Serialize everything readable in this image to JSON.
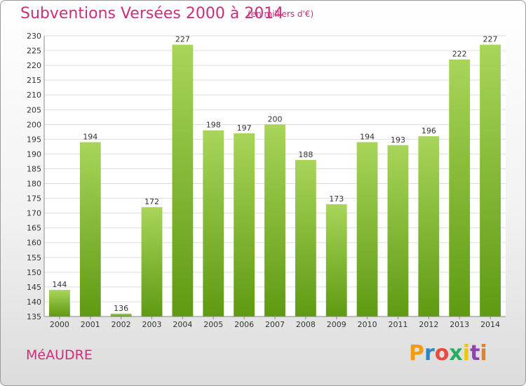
{
  "header": {
    "title": "Subventions Versées 2000 à 2014",
    "subtitle": "(en milliers d'€)"
  },
  "footer": {
    "commune": "MéAUDRE",
    "logo": {
      "letters": [
        "P",
        "r",
        "o",
        "x",
        "i",
        "t",
        "i"
      ],
      "colors": [
        "#f39c12",
        "#2e86c1",
        "#e74c3c",
        "#27ae60",
        "#f1c40f",
        "#8e44ad",
        "#e67e22"
      ]
    }
  },
  "chart_data": {
    "type": "bar",
    "title": "Subventions Versées 2000 à 2014",
    "xlabel": "",
    "ylabel": "",
    "categories": [
      "2000",
      "2001",
      "2002",
      "2003",
      "2004",
      "2005",
      "2006",
      "2007",
      "2008",
      "2009",
      "2010",
      "2011",
      "2012",
      "2013",
      "2014"
    ],
    "values": [
      144,
      194,
      136,
      172,
      227,
      198,
      197,
      200,
      188,
      173,
      194,
      193,
      196,
      222,
      227
    ],
    "ylim": [
      135,
      230
    ],
    "yticks": [
      135,
      140,
      145,
      150,
      155,
      160,
      165,
      170,
      175,
      180,
      185,
      190,
      195,
      200,
      205,
      210,
      215,
      220,
      225,
      230
    ],
    "grid": true,
    "bar_color_top": "#a8d55a",
    "bar_color_bottom": "#5f9a12"
  }
}
